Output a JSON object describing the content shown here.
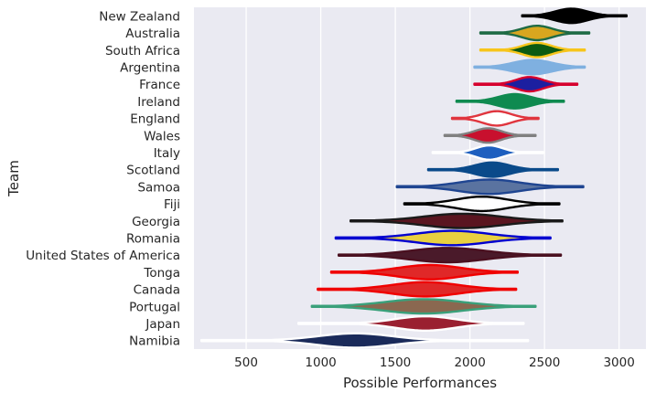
{
  "chart_data": {
    "type": "violin",
    "title": "",
    "xlabel": "Possible Performances",
    "ylabel": "Team",
    "xlim": [
      150,
      3180
    ],
    "xticks": [
      "500",
      "1000",
      "1500",
      "2000",
      "2500",
      "3000"
    ],
    "grid": true,
    "teams": [
      {
        "name": "New Zealand",
        "min": 2350,
        "max": 3050,
        "peak": 2680,
        "spread": 110,
        "edge": "#000000",
        "fill": "#000000"
      },
      {
        "name": "Australia",
        "min": 2070,
        "max": 2800,
        "peak": 2450,
        "spread": 100,
        "edge": "#1e6b45",
        "fill": "#d8a61f"
      },
      {
        "name": "South Africa",
        "min": 2070,
        "max": 2770,
        "peak": 2450,
        "spread": 95,
        "edge": "#f7c51b",
        "fill": "#0b5a12"
      },
      {
        "name": "Argentina",
        "min": 2030,
        "max": 2770,
        "peak": 2420,
        "spread": 130,
        "edge": "#7fb0e0",
        "fill": "#7fb0e0"
      },
      {
        "name": "France",
        "min": 2030,
        "max": 2720,
        "peak": 2400,
        "spread": 90,
        "edge": "#d6002e",
        "fill": "#1c1fa0"
      },
      {
        "name": "Ireland",
        "min": 1910,
        "max": 2630,
        "peak": 2300,
        "spread": 110,
        "edge": "#0f8a50",
        "fill": "#0f8a50"
      },
      {
        "name": "England",
        "min": 1880,
        "max": 2460,
        "peak": 2180,
        "spread": 95,
        "edge": "#e0353e",
        "fill": "#ffffff"
      },
      {
        "name": "Wales",
        "min": 1830,
        "max": 2440,
        "peak": 2120,
        "spread": 90,
        "edge": "#808080",
        "fill": "#c8102e"
      },
      {
        "name": "Italy",
        "min": 1750,
        "max": 2490,
        "peak": 2130,
        "spread": 90,
        "edge": "#ffffff",
        "fill": "#1e5fbf"
      },
      {
        "name": "Scotland",
        "min": 1720,
        "max": 2590,
        "peak": 2150,
        "spread": 115,
        "edge": "#0a4a8a",
        "fill": "#0a4a8a"
      },
      {
        "name": "Samoa",
        "min": 1510,
        "max": 2760,
        "peak": 2130,
        "spread": 200,
        "edge": "#1f4591",
        "fill": "#5a73a0"
      },
      {
        "name": "Fiji",
        "min": 1560,
        "max": 2600,
        "peak": 2080,
        "spread": 170,
        "edge": "#000000",
        "fill": "#ffffff"
      },
      {
        "name": "Georgia",
        "min": 1200,
        "max": 2620,
        "peak": 1950,
        "spread": 260,
        "edge": "#1a1a1a",
        "fill": "#5a1520"
      },
      {
        "name": "Romania",
        "min": 1100,
        "max": 2540,
        "peak": 1880,
        "spread": 240,
        "edge": "#0000d0",
        "fill": "#e8d040"
      },
      {
        "name": "United States of America",
        "min": 1120,
        "max": 2610,
        "peak": 1850,
        "spread": 250,
        "edge": "#4a1020",
        "fill": "#4a1a2a"
      },
      {
        "name": "Tonga",
        "min": 1070,
        "max": 2320,
        "peak": 1730,
        "spread": 210,
        "edge": "#f00000",
        "fill": "#e02828"
      },
      {
        "name": "Canada",
        "min": 980,
        "max": 2310,
        "peak": 1700,
        "spread": 220,
        "edge": "#f00000",
        "fill": "#e02828"
      },
      {
        "name": "Portugal",
        "min": 940,
        "max": 2440,
        "peak": 1690,
        "spread": 260,
        "edge": "#3aa07a",
        "fill": "#8a6850"
      },
      {
        "name": "Japan",
        "min": 850,
        "max": 2360,
        "peak": 1700,
        "spread": 200,
        "edge": "#ffffff",
        "fill": "#9a2030"
      },
      {
        "name": "Namibia",
        "min": 200,
        "max": 2390,
        "peak": 1230,
        "spread": 250,
        "edge": "#ffffff",
        "fill": "#1a2a5a"
      }
    ]
  }
}
